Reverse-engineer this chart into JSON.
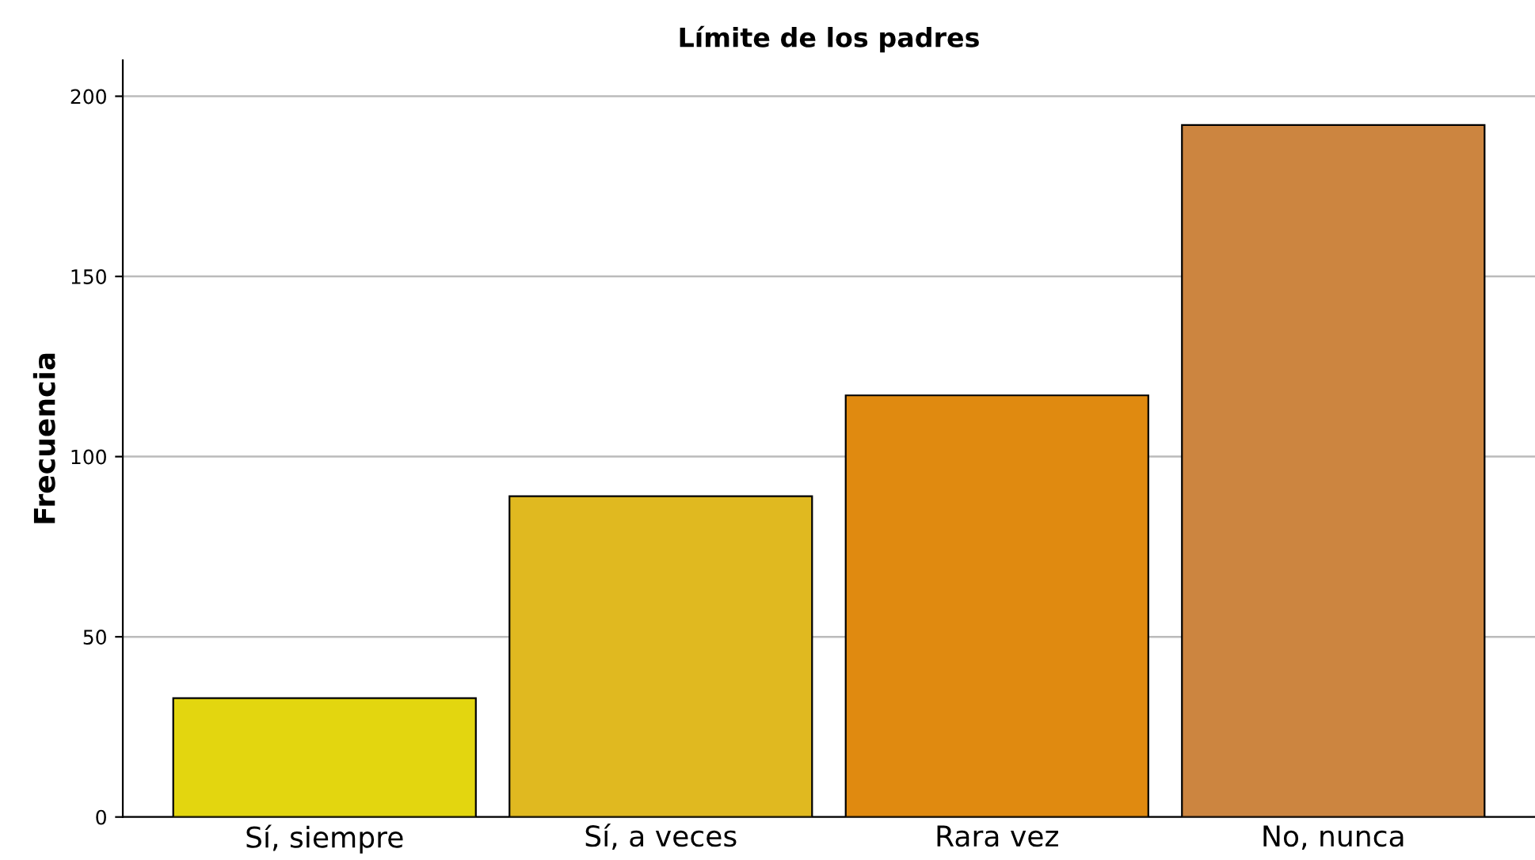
{
  "chart_data": {
    "type": "bar",
    "title": "Límite de los padres",
    "ylabel": "Frecuencia",
    "categories": [
      "Sí, siempre",
      "Sí, a veces",
      "Rara vez",
      "No, nunca"
    ],
    "values": [
      33,
      89,
      117,
      192
    ],
    "colors": [
      "#e3d60f",
      "#e0b920",
      "#e08a10",
      "#cc8540"
    ],
    "ylim": [
      0,
      210
    ],
    "yticks": [
      0,
      50,
      100,
      150,
      200
    ],
    "grid": "y"
  }
}
